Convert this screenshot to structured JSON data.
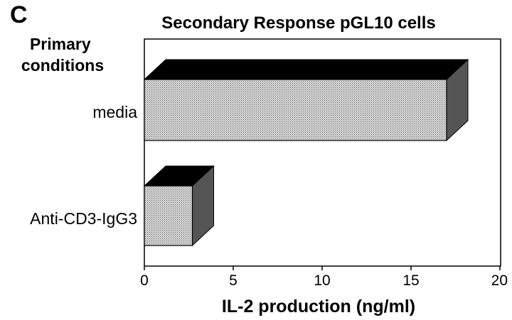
{
  "panel_letter": "C",
  "chart_data": {
    "type": "bar",
    "orientation": "horizontal",
    "style": "3d",
    "title": "Secondary Response pGL10 cells",
    "ylabel": "Primary conditions",
    "xlabel": "IL-2 production (ng/ml)",
    "categories": [
      "media",
      "Anti-CD3-IgG3"
    ],
    "values": [
      17,
      2.7
    ],
    "xlim": [
      0,
      20
    ],
    "xticks": [
      "0",
      "5",
      "10",
      "15",
      "20"
    ],
    "grid": false,
    "legend": "none",
    "colors": {
      "bar_front": "#c8c8c8",
      "bar_top": "#000000",
      "bar_side": "#555555"
    }
  }
}
